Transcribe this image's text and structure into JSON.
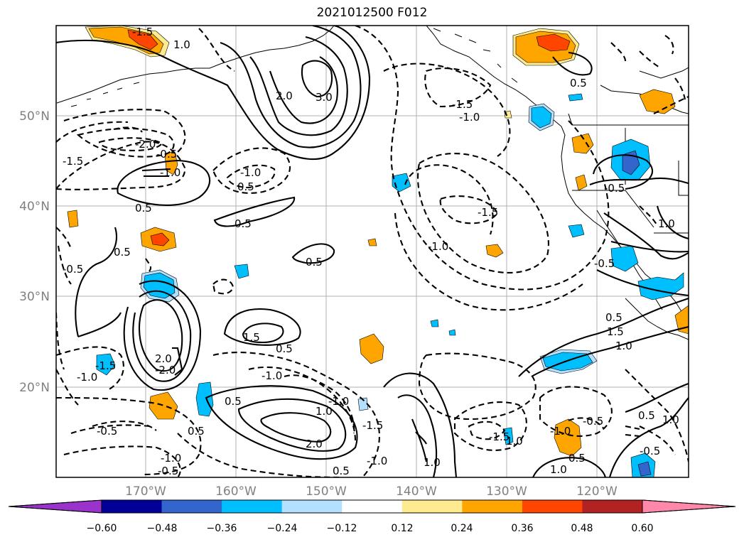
{
  "map": {
    "title": "2021012500 F012",
    "lat_labels": [
      "50°N",
      "40°N",
      "30°N",
      "20°N"
    ],
    "lon_labels": [
      "170°W",
      "160°W",
      "150°W",
      "140°W",
      "130°W",
      "120°W"
    ],
    "contour_labels": [
      "-1.5",
      "1.0",
      "2.0",
      "3.0",
      "-1.5",
      "-1.0",
      "0.5",
      "-1.5",
      "-2.0",
      "-0.5",
      "-1.0",
      "-1.0",
      "0.5",
      "0.5",
      "-0.5",
      "-1.5",
      "-1.0",
      "0.5",
      "0.5",
      "0.5",
      "1.0",
      "1.5",
      "1.0",
      "0.5",
      "-1.0",
      "-1.5",
      "2.0",
      "-2.0",
      "1.5",
      "0.5",
      "0.5",
      "-0.5",
      "0.5",
      "2.0",
      "1.0",
      "-1.5",
      "-1.0",
      "-0.5",
      "-1.0",
      "1.0",
      "-1.5",
      "1.0",
      "-1.0",
      "0.5",
      "-0.5",
      "1.0",
      "0.5",
      "1.0",
      "-0.5",
      "-0.5",
      "-1.0",
      "0.5",
      "-1.0",
      "-0.5"
    ],
    "colorbar": {
      "ticks": [
        "−0.60",
        "−0.48",
        "−0.36",
        "−0.24",
        "−0.12",
        "0.12",
        "0.24",
        "0.36",
        "0.48",
        "0.60"
      ],
      "colors": [
        "#9933cc",
        "#000099",
        "#3366cc",
        "#00bfff",
        "#b3e0ff",
        "#ffffff",
        "#ffeb8f",
        "#ffa500",
        "#ff4500",
        "#b22222",
        "#ff88aa"
      ]
    }
  }
}
